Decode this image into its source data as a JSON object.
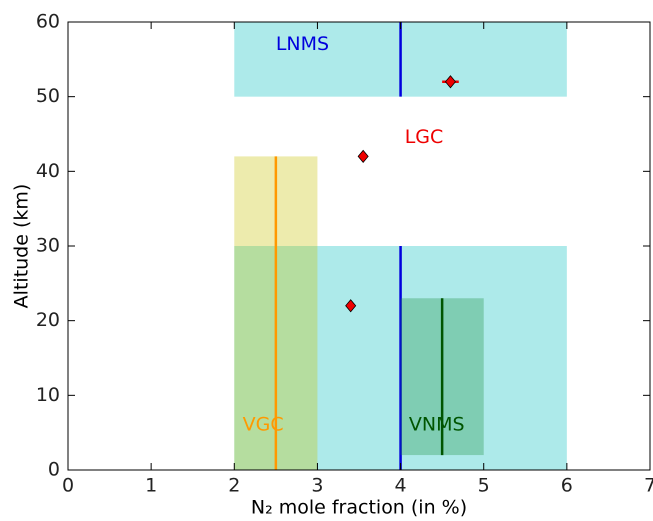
{
  "chart_data": {
    "type": "range",
    "xlabel": "N₂ mole fraction (in %)",
    "ylabel": "Altitude (km)",
    "xlim": [
      0,
      7
    ],
    "xticks": [
      0,
      1,
      2,
      3,
      4,
      5,
      6,
      7
    ],
    "ylim": [
      0,
      60
    ],
    "yticks": [
      0,
      10,
      20,
      30,
      40,
      50,
      60
    ],
    "series": [
      {
        "name": "LNMS",
        "color": "#00bfbf",
        "line_color": "#0000dd",
        "label_color": "#0000dd",
        "boxes": [
          {
            "x": [
              2,
              6
            ],
            "y": [
              50,
              60
            ],
            "line_x": 4
          },
          {
            "x": [
              2,
              6
            ],
            "y": [
              0,
              30
            ],
            "line_x": 4
          }
        ]
      },
      {
        "name": "VGC",
        "color": "#c8c000",
        "line_color": "#ff9900",
        "label_color": "#ff9900",
        "boxes": [
          {
            "x": [
              2,
              3
            ],
            "y": [
              0,
              42
            ],
            "line_x": 2.5
          }
        ]
      },
      {
        "name": "VNMS",
        "color": "#1f8f3f",
        "line_color": "#005500",
        "label_color": "#005500",
        "boxes": [
          {
            "x": [
              4,
              5
            ],
            "y": [
              2,
              23
            ],
            "line_x": 4.5
          }
        ]
      },
      {
        "name": "LGC",
        "color": "#ee0000",
        "label_color": "#ee0000",
        "points": {
          "x": [
            4.6,
            3.55,
            3.4
          ],
          "y": [
            52,
            42,
            22
          ],
          "xerr": [
            0.1,
            null,
            null
          ]
        }
      }
    ]
  }
}
